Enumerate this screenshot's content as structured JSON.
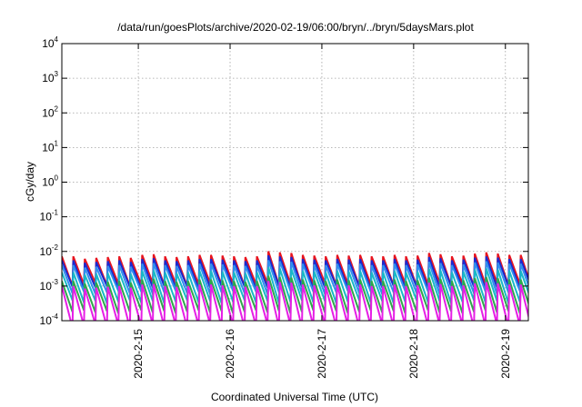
{
  "chart_data": {
    "type": "line",
    "title": "/data/run/goesPlots/archive/2020-02-19/06:00/bryn/../bryn/5daysMars.plot",
    "xlabel": "Coordinated Universal Time (UTC)",
    "ylabel": "cGy/day",
    "yscale": "log",
    "ylim": [
      0.0001,
      10000
    ],
    "xlim": [
      "2020-02-14T04:00",
      "2020-02-19T06:00"
    ],
    "grid": true,
    "legend": "none",
    "xticks": [
      {
        "t": "2020-02-15T00:00",
        "label": "2020-2-15"
      },
      {
        "t": "2020-02-16T00:00",
        "label": "2020-2-16"
      },
      {
        "t": "2020-02-17T00:00",
        "label": "2020-2-17"
      },
      {
        "t": "2020-02-18T00:00",
        "label": "2020-2-18"
      },
      {
        "t": "2020-02-19T00:00",
        "label": "2020-2-19"
      }
    ],
    "yticks": [
      {
        "v": 0.0001,
        "base": "10",
        "exp": "-4"
      },
      {
        "v": 0.001,
        "base": "10",
        "exp": "-3"
      },
      {
        "v": 0.01,
        "base": "10",
        "exp": "-2"
      },
      {
        "v": 0.1,
        "base": "10",
        "exp": "-1"
      },
      {
        "v": 1,
        "base": "10",
        "exp": "0"
      },
      {
        "v": 10,
        "base": "10",
        "exp": "1"
      },
      {
        "v": 100,
        "base": "10",
        "exp": "2"
      },
      {
        "v": 1000,
        "base": "10",
        "exp": "3"
      },
      {
        "v": 10000,
        "base": "10",
        "exp": "4"
      }
    ],
    "cycle_hours": 3,
    "cycle_start": "2020-02-14T04:00",
    "cycle_envelope": [
      1.0,
      1.0,
      0.85,
      0.9,
      0.95,
      1.0,
      0.9,
      1.1,
      1.15,
      1.0,
      0.95,
      1.0,
      1.1,
      1.1,
      1.05,
      1.0,
      0.95,
      1.0,
      1.4,
      1.3,
      1.25,
      1.1,
      1.05,
      1.0,
      1.1,
      1.05,
      1.1,
      1.0,
      1.0,
      1.1,
      1.0,
      1.05,
      1.25,
      1.15,
      1.0,
      1.05,
      1.2,
      1.3,
      1.2,
      1.1,
      1.1,
      1.05
    ],
    "series": [
      {
        "color": "#e8141e",
        "peak": 0.0072,
        "trough": 0.0011
      },
      {
        "color": "#1a2ad0",
        "peak": 0.0055,
        "trough": 0.0009
      },
      {
        "color": "#2f8fef",
        "peak": 0.004,
        "trough": 0.00065
      },
      {
        "color": "#18b8c8",
        "peak": 0.0025,
        "trough": 0.00035
      },
      {
        "color": "#2ea84a",
        "peak": 0.0014,
        "trough": 0.00018
      },
      {
        "color": "#e61ee6",
        "peak": 0.001,
        "trough": 7e-05
      }
    ]
  }
}
